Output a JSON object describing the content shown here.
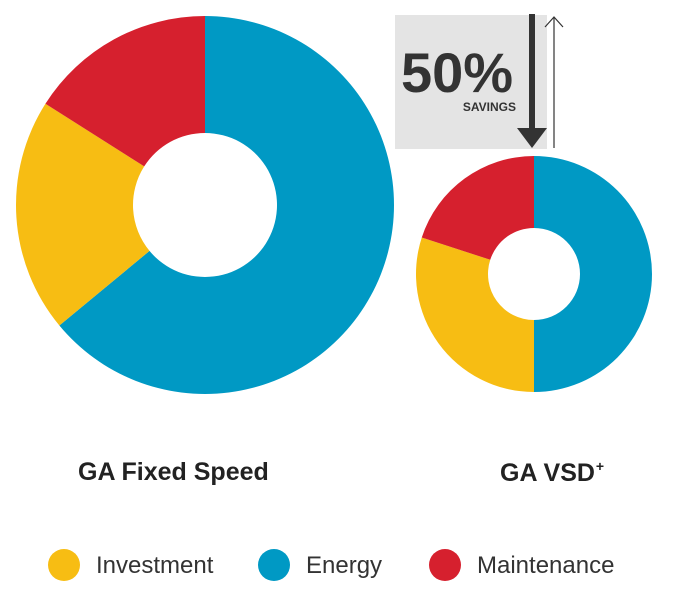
{
  "colors": {
    "investment": "#f7bd13",
    "energy": "#0099c4",
    "maintenance": "#d6202e",
    "savings_box": "#e4e4e4",
    "arrow": "#333333",
    "text": "#333333"
  },
  "chart_data": [
    {
      "type": "pie",
      "variant": "donut",
      "title": "GA Fixed Speed",
      "categories": [
        "Energy",
        "Investment",
        "Maintenance"
      ],
      "values": [
        64,
        20,
        16
      ],
      "unit": "%",
      "order": "clockwise from top"
    },
    {
      "type": "pie",
      "variant": "donut",
      "title": "GA VSD",
      "title_superscript": "+",
      "categories": [
        "Energy",
        "Investment",
        "Maintenance"
      ],
      "values": [
        50,
        30,
        20
      ],
      "unit": "%",
      "order": "clockwise from top"
    }
  ],
  "savings": {
    "value": "50%",
    "label": "SAVINGS"
  },
  "legend": [
    {
      "label": "Investment",
      "color_key": "investment"
    },
    {
      "label": "Energy",
      "color_key": "energy"
    },
    {
      "label": "Maintenance",
      "color_key": "maintenance"
    }
  ]
}
